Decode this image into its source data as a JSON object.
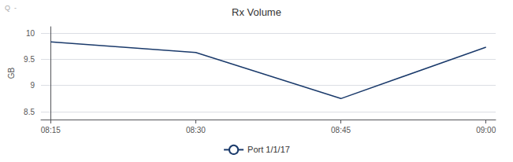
{
  "chart_data": {
    "type": "line",
    "title": "Rx Volume",
    "ylabel": "GB",
    "x": [
      0,
      15,
      30,
      45
    ],
    "series": [
      {
        "name": "Port 1/1/17",
        "color": "#1a3a6b",
        "values": [
          9.83,
          9.63,
          8.75,
          9.73
        ]
      }
    ],
    "xlim": [
      -1,
      46
    ],
    "xticks": [
      {
        "value": 0,
        "label": "08:15"
      },
      {
        "value": 15,
        "label": "08:30"
      },
      {
        "value": 30,
        "label": "08:45"
      },
      {
        "value": 45,
        "label": "09:00"
      }
    ],
    "ylim": [
      8.35,
      10.12
    ],
    "yticks": [
      8.5,
      9,
      9.5,
      10
    ],
    "grid": true,
    "legend": "bottom",
    "annotations": [
      "Q  -"
    ]
  }
}
